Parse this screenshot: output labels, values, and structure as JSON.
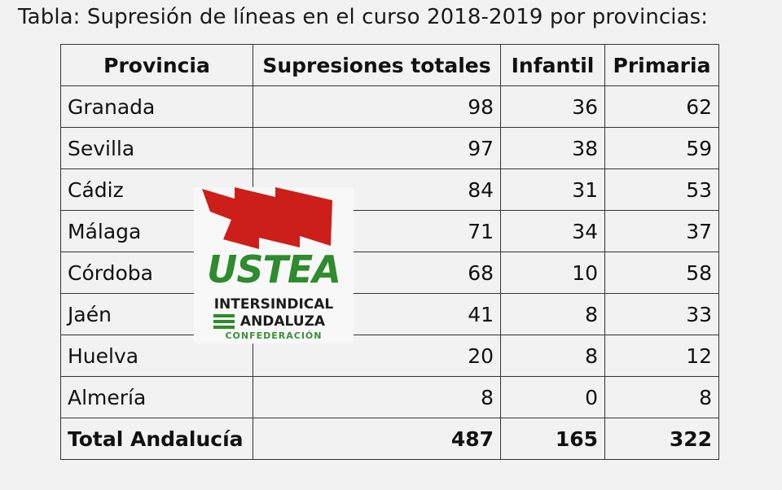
{
  "title": "Tabla: Supresión de líneas en el curso 2018-2019 por provincias:",
  "table": {
    "headers": [
      "Provincia",
      "Supresiones totales",
      "Infantil",
      "Primaria"
    ],
    "rows": [
      [
        "Granada",
        "98",
        "36",
        "62"
      ],
      [
        "Sevilla",
        "97",
        "38",
        "59"
      ],
      [
        "Cádiz",
        "84",
        "31",
        "53"
      ],
      [
        "Málaga",
        "71",
        "34",
        "37"
      ],
      [
        "Córdoba",
        "68",
        "10",
        "58"
      ],
      [
        "Jaén",
        "41",
        "8",
        "33"
      ],
      [
        "Huelva",
        "20",
        "8",
        "12"
      ],
      [
        "Almería",
        "8",
        "0",
        "8"
      ]
    ],
    "total": [
      "Total Andalucía",
      "487",
      "165",
      "322"
    ]
  },
  "logo": {
    "name": "USTEA",
    "line1": "INTERSINDICAL",
    "line2": "ANDALUZA",
    "line3": "CONFEDERACIÓN",
    "flag_color": "#cc1f1a",
    "text_color": "#2e8b2e"
  }
}
